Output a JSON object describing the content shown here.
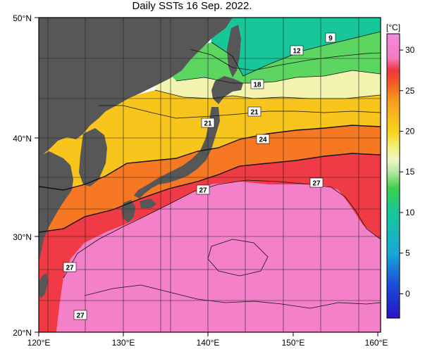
{
  "title": "Daily SSTs 16 Sep. 2022.",
  "colorbar": {
    "unit": "[°C]",
    "ticks": [
      "30",
      "25",
      "20",
      "15",
      "10",
      "5",
      "0"
    ],
    "range": [
      -3,
      32
    ],
    "stops": [
      {
        "t": -3,
        "color": "#2a14c8"
      },
      {
        "t": 1,
        "color": "#1a4bd8"
      },
      {
        "t": 5,
        "color": "#19a8d8"
      },
      {
        "t": 10,
        "color": "#17c79a"
      },
      {
        "t": 13,
        "color": "#3fcf4a"
      },
      {
        "t": 15,
        "color": "#b7e6a4"
      },
      {
        "t": 16.5,
        "color": "#f1f5c9"
      },
      {
        "t": 18,
        "color": "#f5f07a"
      },
      {
        "t": 20,
        "color": "#f6d21a"
      },
      {
        "t": 22,
        "color": "#f8b81e"
      },
      {
        "t": 24,
        "color": "#f7961f"
      },
      {
        "t": 26,
        "color": "#f45a25"
      },
      {
        "t": 27.5,
        "color": "#f0353d"
      },
      {
        "t": 29,
        "color": "#f37bbd"
      },
      {
        "t": 32,
        "color": "#f28ae0"
      }
    ]
  },
  "axes": {
    "lon_ticks": [
      "120°E",
      "130°E",
      "140°E",
      "150°E",
      "160°E"
    ],
    "lat_ticks": [
      "50°N",
      "40°N",
      "30°N",
      "20°N"
    ]
  },
  "colors": {
    "land": "#575757",
    "grid": "#222222",
    "contour": "#111111",
    "frame": "#000000"
  },
  "contour_labels": [
    "9",
    "12",
    "18",
    "21",
    "21",
    "24",
    "27",
    "27",
    "27",
    "27"
  ]
}
